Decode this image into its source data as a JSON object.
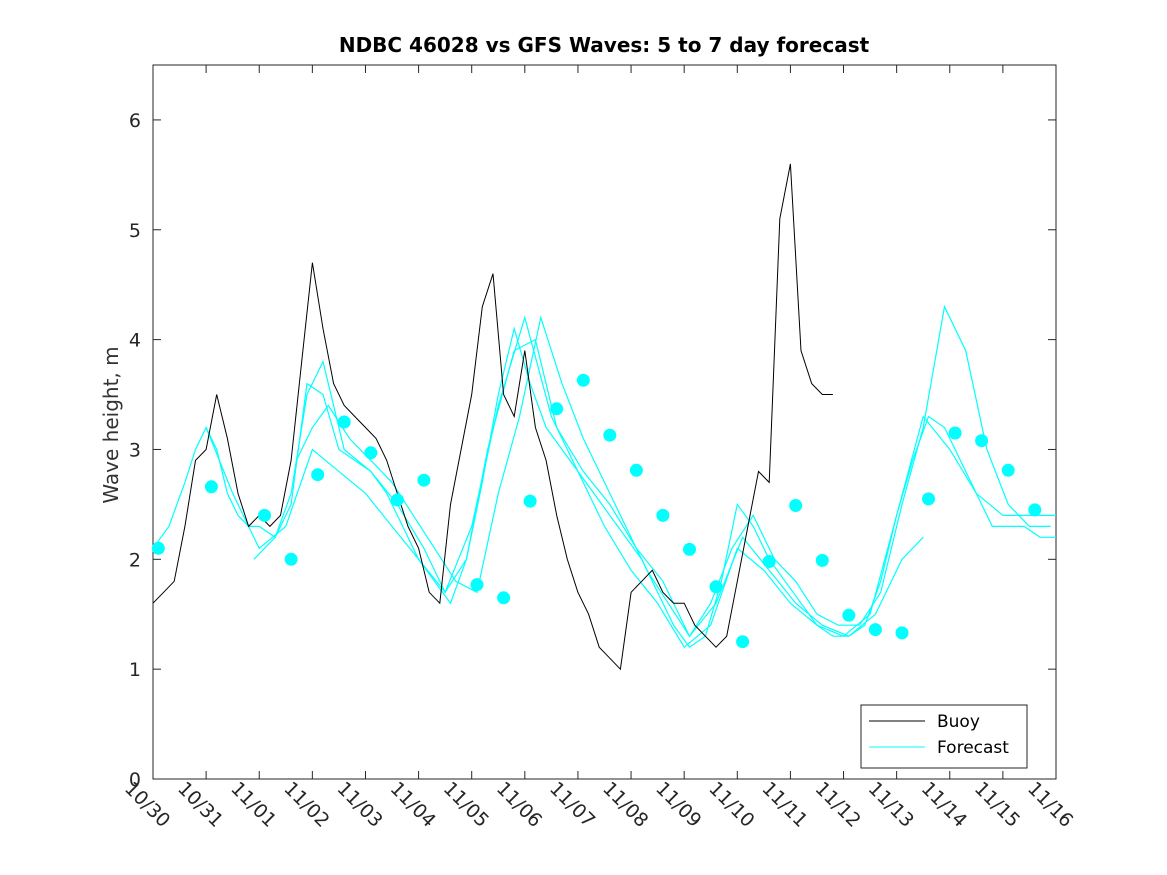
{
  "chart_data": {
    "type": "line",
    "title": "NDBC 46028 vs GFS Waves: 5 to 7 day forecast",
    "xlabel": "",
    "ylabel": "Wave height, m",
    "ylim": [
      0,
      6.5
    ],
    "xlim_days": [
      0,
      17
    ],
    "x_tick_labels": [
      "10/30",
      "10/31",
      "11/01",
      "11/02",
      "11/03",
      "11/04",
      "11/05",
      "11/06",
      "11/07",
      "11/08",
      "11/09",
      "11/10",
      "11/11",
      "11/12",
      "11/13",
      "11/14",
      "11/15",
      "11/16"
    ],
    "y_ticks": [
      0,
      1,
      2,
      3,
      4,
      5,
      6
    ],
    "legend": {
      "position": "bottom-right",
      "entries": [
        "Buoy",
        "Forecast"
      ]
    },
    "colors": {
      "buoy": "#000000",
      "forecast": "#00ffff"
    },
    "buoy_series": {
      "name": "Buoy",
      "x": [
        0.0,
        0.2,
        0.4,
        0.6,
        0.8,
        1.0,
        1.2,
        1.4,
        1.6,
        1.8,
        2.0,
        2.2,
        2.4,
        2.6,
        2.8,
        3.0,
        3.2,
        3.4,
        3.6,
        3.8,
        4.0,
        4.2,
        4.4,
        4.6,
        4.8,
        5.0,
        5.2,
        5.4,
        5.6,
        5.8,
        6.0,
        6.2,
        6.4,
        6.6,
        6.8,
        7.0,
        7.2,
        7.4,
        7.6,
        7.8,
        8.0,
        8.2,
        8.4,
        8.6,
        8.8,
        9.0,
        9.2,
        9.4,
        9.6,
        9.8,
        10.0,
        10.2,
        10.4,
        10.6,
        10.8,
        11.0,
        11.2,
        11.4,
        11.6,
        11.8,
        12.0,
        12.2,
        12.4,
        12.6,
        12.8,
        13.0,
        13.2,
        13.4,
        13.6,
        13.8,
        14.0,
        14.2,
        14.4,
        14.6,
        14.8,
        15.0,
        15.2,
        15.4,
        15.6,
        15.8,
        16.0,
        16.2,
        16.4,
        16.6,
        16.8,
        17.0
      ],
      "values": [
        1.6,
        1.7,
        1.8,
        2.3,
        2.9,
        3.0,
        3.5,
        3.1,
        2.6,
        2.3,
        2.4,
        2.3,
        2.4,
        2.9,
        3.8,
        4.7,
        4.1,
        3.6,
        3.4,
        3.3,
        3.2,
        3.1,
        2.9,
        2.6,
        2.3,
        2.1,
        1.7,
        1.6,
        2.5,
        3.0,
        3.5,
        4.3,
        4.6,
        3.5,
        3.3,
        3.9,
        3.2,
        2.9,
        2.4,
        2.0,
        1.7,
        1.5,
        1.2,
        1.1,
        1.0,
        1.7,
        1.8,
        1.9,
        1.7,
        1.6,
        1.6,
        1.4,
        1.3,
        1.2,
        1.3,
        1.8,
        2.3,
        2.8,
        2.7,
        5.1,
        5.6,
        3.9,
        3.6,
        3.5,
        3.5,
        null,
        null,
        null,
        null,
        null,
        null,
        null,
        null,
        null,
        null,
        null,
        null,
        null,
        null,
        null,
        null,
        null,
        null,
        null,
        null,
        null
      ]
    },
    "forecast_series": [
      {
        "name": "Forecast",
        "x": [
          0.0,
          0.3,
          0.6,
          0.8,
          1.0,
          1.2,
          1.4,
          1.6,
          1.8,
          2.0,
          2.3,
          2.6,
          2.9,
          3.2,
          3.5,
          3.8,
          4.1,
          4.4,
          4.7,
          5.0,
          5.3,
          5.6,
          5.9,
          6.2,
          6.5,
          6.8,
          7.1,
          7.4,
          7.7,
          8.0,
          8.3,
          8.6,
          8.9,
          9.2,
          9.5,
          9.8,
          10.1,
          10.4,
          10.7,
          11.0,
          11.3,
          11.6,
          11.9,
          12.2,
          12.5,
          12.8,
          13.1,
          13.4,
          13.7,
          14.0,
          14.3,
          14.6,
          14.9,
          15.2,
          15.5,
          15.8,
          16.1,
          16.4,
          16.7,
          17.0
        ],
        "values": [
          2.1,
          2.3,
          2.7,
          3.0,
          3.2,
          3.0,
          2.6,
          2.4,
          2.3,
          2.3,
          2.2,
          2.5,
          3.6,
          3.5,
          3.0,
          2.9,
          2.8,
          2.6,
          2.3,
          2.0,
          1.8,
          1.6,
          2.0,
          2.7,
          3.5,
          4.1,
          3.6,
          3.2,
          3.0,
          2.8,
          2.6,
          2.4,
          2.2,
          2.0,
          1.7,
          1.4,
          1.2,
          1.3,
          1.8,
          2.5,
          2.3,
          2.0,
          1.8,
          1.6,
          1.4,
          1.3,
          1.3,
          1.4,
          1.8,
          2.4,
          2.9,
          3.3,
          3.2,
          2.9,
          2.6,
          2.3,
          2.3,
          2.3,
          2.2,
          2.2
        ]
      },
      {
        "name": "Forecast",
        "x": [
          1.0,
          1.5,
          2.0,
          2.5,
          3.0,
          3.5,
          4.0,
          4.5,
          5.0,
          5.5,
          6.0,
          6.5,
          7.0,
          7.5,
          8.0,
          8.5,
          9.0,
          9.5,
          10.0,
          10.5,
          11.0,
          11.5,
          12.0,
          12.5,
          13.0,
          13.5,
          14.0,
          14.5,
          15.0,
          15.5,
          16.0,
          16.5,
          17.0
        ],
        "values": [
          3.2,
          2.6,
          2.1,
          2.3,
          3.0,
          2.8,
          2.6,
          2.3,
          2.0,
          1.7,
          2.3,
          3.4,
          4.2,
          3.3,
          2.8,
          2.3,
          1.9,
          1.6,
          1.2,
          1.4,
          2.1,
          1.9,
          1.6,
          1.4,
          1.3,
          1.5,
          2.4,
          3.3,
          3.0,
          2.6,
          2.4,
          2.4,
          2.4
        ]
      },
      {
        "name": "Forecast",
        "x": [
          1.9,
          2.3,
          2.6,
          2.9,
          3.2,
          3.6,
          4.1,
          4.6,
          5.1,
          5.5,
          5.9,
          6.3,
          6.8,
          7.2,
          7.6,
          8.1,
          8.6,
          9.1,
          9.6,
          10.1,
          10.6,
          11.1,
          11.6,
          12.1,
          12.6,
          13.1,
          13.6,
          14.1,
          14.5
        ],
        "values": [
          2.0,
          2.2,
          2.6,
          3.5,
          3.8,
          3.0,
          2.8,
          2.5,
          2.1,
          1.7,
          2.0,
          3.0,
          3.9,
          4.0,
          3.2,
          2.8,
          2.5,
          2.1,
          1.8,
          1.3,
          1.6,
          2.2,
          1.9,
          1.6,
          1.4,
          1.3,
          1.5,
          2.0,
          2.2
        ]
      },
      {
        "name": "Forecast",
        "x": [
          2.7,
          3.0,
          3.3,
          3.7,
          4.1,
          4.5,
          4.9,
          5.3,
          5.7,
          6.1,
          6.5,
          6.9,
          7.3,
          7.7,
          8.1,
          8.5,
          8.9,
          9.3,
          9.7,
          10.1,
          10.5,
          10.9,
          11.3,
          11.7,
          12.1,
          12.5,
          12.9,
          13.3,
          13.7,
          14.1,
          14.5,
          14.9,
          15.3,
          15.7,
          16.1,
          16.5,
          16.9
        ],
        "values": [
          2.9,
          3.2,
          3.4,
          3.1,
          2.9,
          2.7,
          2.4,
          2.1,
          1.8,
          1.7,
          2.6,
          3.3,
          4.2,
          3.6,
          3.1,
          2.7,
          2.3,
          1.9,
          1.6,
          1.3,
          1.6,
          2.1,
          2.4,
          2.0,
          1.8,
          1.5,
          1.4,
          1.4,
          1.7,
          2.5,
          3.2,
          4.3,
          3.9,
          3.0,
          2.5,
          2.3,
          2.3
        ]
      }
    ],
    "forecast_markers": {
      "name": "Forecast",
      "x": [
        0.1,
        1.1,
        2.1,
        2.6,
        3.1,
        3.6,
        4.1,
        4.6,
        5.1,
        6.1,
        6.6,
        7.1,
        7.6,
        8.1,
        8.6,
        9.1,
        9.6,
        10.1,
        10.6,
        11.1,
        11.6,
        12.1,
        12.6,
        13.1,
        13.6,
        14.1,
        14.6,
        15.1,
        15.6,
        16.1,
        16.6
      ],
      "values": [
        2.1,
        2.66,
        2.4,
        2.0,
        2.77,
        3.25,
        2.97,
        2.54,
        2.72,
        1.77,
        1.65,
        2.53,
        3.37,
        3.63,
        3.13,
        2.81,
        2.4,
        2.09,
        1.75,
        1.25,
        1.98,
        2.49,
        1.99,
        1.49,
        1.36,
        1.33,
        2.55,
        3.15,
        3.08,
        2.81,
        2.45
      ]
    }
  }
}
